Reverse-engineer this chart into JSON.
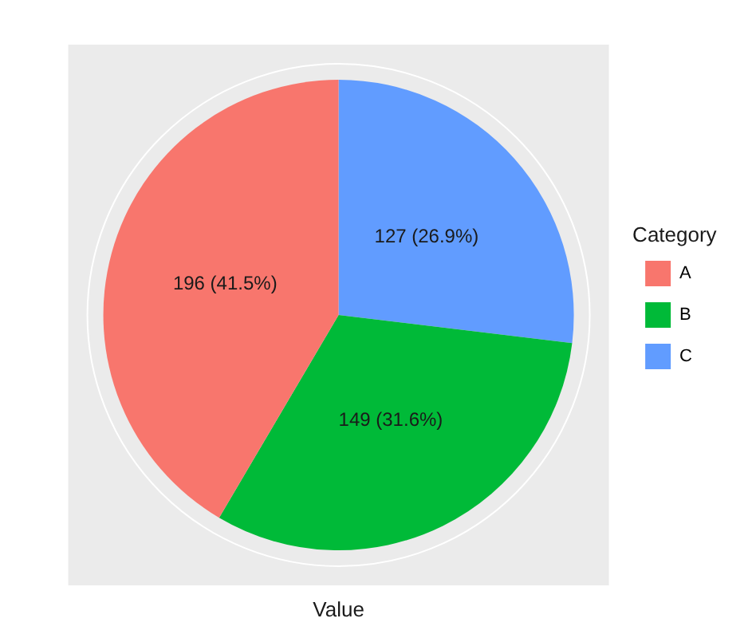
{
  "chart_data": {
    "type": "pie",
    "xlabel": "Value",
    "legend_title": "Category",
    "legend": "right",
    "categories": [
      "A",
      "B",
      "C"
    ],
    "values": [
      196,
      149,
      127
    ],
    "colors": [
      "#f8766d",
      "#00ba38",
      "#619cff"
    ],
    "value_labels": [
      "196 (41.5%)",
      "149 (31.6%)",
      "127 (26.9%)"
    ]
  }
}
